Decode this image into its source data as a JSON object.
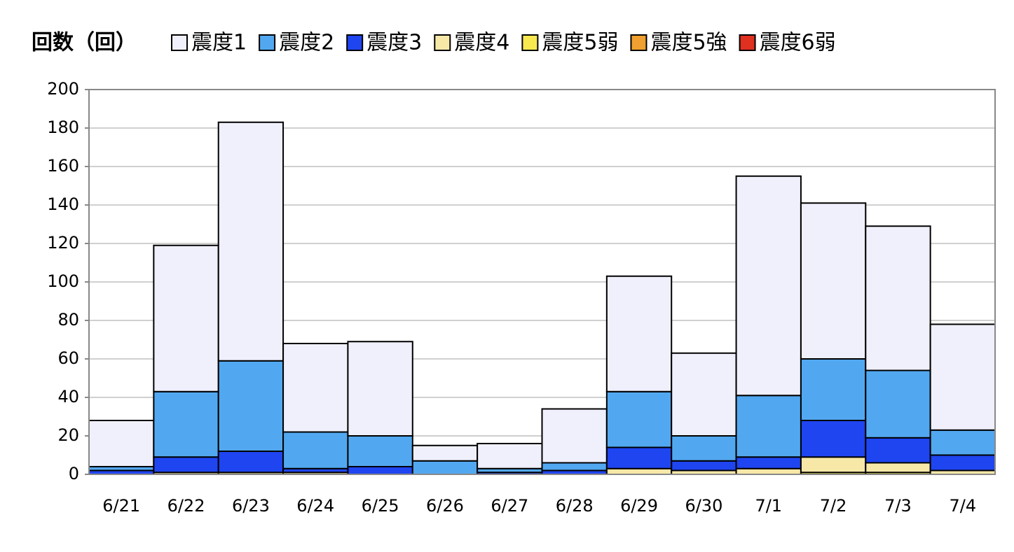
{
  "chart_data": {
    "type": "stacked_bar",
    "y_label": "回数（回）",
    "categories": [
      "6/21",
      "6/22",
      "6/23",
      "6/24",
      "6/25",
      "6/26",
      "6/27",
      "6/28",
      "6/29",
      "6/30",
      "7/1",
      "7/2",
      "7/3",
      "7/4"
    ],
    "series": [
      {
        "name": "震度1",
        "color": "#f0f0fc",
        "values": [
          24,
          76,
          124,
          46,
          49,
          8,
          13,
          28,
          60,
          43,
          114,
          81,
          75,
          55
        ]
      },
      {
        "name": "震度2",
        "color": "#52a8f0",
        "values": [
          2,
          34,
          47,
          19,
          16,
          7,
          2,
          4,
          29,
          13,
          32,
          32,
          35,
          13
        ]
      },
      {
        "name": "震度3",
        "color": "#1f45f0",
        "values": [
          2,
          8,
          11,
          2,
          4,
          0,
          1,
          2,
          11,
          5,
          6,
          19,
          13,
          8
        ]
      },
      {
        "name": "震度4",
        "color": "#f8e8a8",
        "values": [
          0,
          1,
          1,
          1,
          0,
          0,
          0,
          0,
          3,
          2,
          3,
          8,
          5,
          2
        ]
      },
      {
        "name": "震度5弱",
        "color": "#f8e850",
        "values": [
          0,
          0,
          0,
          0,
          0,
          0,
          0,
          0,
          0,
          0,
          0,
          1,
          1,
          0
        ]
      },
      {
        "name": "震度5強",
        "color": "#f0a030",
        "values": [
          0,
          0,
          0,
          0,
          0,
          0,
          0,
          0,
          0,
          0,
          0,
          0,
          0,
          0
        ]
      },
      {
        "name": "震度6弱",
        "color": "#e03020",
        "values": [
          0,
          0,
          0,
          0,
          0,
          0,
          0,
          0,
          0,
          0,
          0,
          0,
          0,
          0
        ]
      }
    ],
    "ylim": [
      0,
      200
    ],
    "yticks": [
      0,
      20,
      40,
      60,
      80,
      100,
      120,
      140,
      160,
      180,
      200
    ],
    "grid": true
  }
}
